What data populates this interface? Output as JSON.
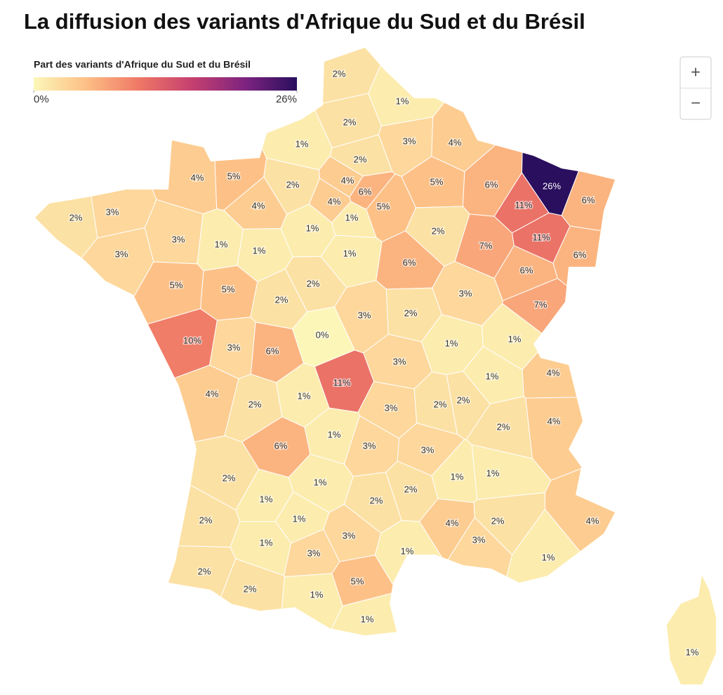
{
  "title": "La diffusion des variants d'Afrique du Sud et du Brésil",
  "legend": {
    "title": "Part des variants d'Afrique du Sud et du Brésil",
    "min": {
      "value": 0,
      "label": "0%"
    },
    "max": {
      "value": 26,
      "label": "26%"
    }
  },
  "zoom": {
    "in": "+",
    "out": "−"
  },
  "regions": [
    {
      "value": 2,
      "label": "2%"
    },
    {
      "value": 1,
      "label": "1%"
    },
    {
      "value": 2,
      "label": "2%"
    },
    {
      "value": 1,
      "label": "1%"
    },
    {
      "value": 3,
      "label": "3%"
    },
    {
      "value": 4,
      "label": "4%"
    },
    {
      "value": 2,
      "label": "2%"
    },
    {
      "value": 4,
      "label": "4%"
    },
    {
      "value": 5,
      "label": "5%"
    },
    {
      "value": 2,
      "label": "2%"
    },
    {
      "value": 4,
      "label": "4%"
    },
    {
      "value": 6,
      "label": "6%"
    },
    {
      "value": 4,
      "label": "4%"
    },
    {
      "value": 4,
      "label": "4%"
    },
    {
      "value": 1,
      "label": "1%"
    },
    {
      "value": 5,
      "label": "5%"
    },
    {
      "value": 5,
      "label": "5%"
    },
    {
      "value": 6,
      "label": "6%"
    },
    {
      "value": 26,
      "label": "26%"
    },
    {
      "value": 11,
      "label": "11%"
    },
    {
      "value": 6,
      "label": "6%"
    },
    {
      "value": 3,
      "label": "3%"
    },
    {
      "value": 2,
      "label": "2%"
    },
    {
      "value": 3,
      "label": "3%"
    },
    {
      "value": 1,
      "label": "1%"
    },
    {
      "value": 1,
      "label": "1%"
    },
    {
      "value": 1,
      "label": "1%"
    },
    {
      "value": 2,
      "label": "2%"
    },
    {
      "value": 11,
      "label": "11%"
    },
    {
      "value": 3,
      "label": "3%"
    },
    {
      "value": 1,
      "label": "1%"
    },
    {
      "value": 6,
      "label": "6%"
    },
    {
      "value": 7,
      "label": "7%"
    },
    {
      "value": 6,
      "label": "6%"
    },
    {
      "value": 5,
      "label": "5%"
    },
    {
      "value": 5,
      "label": "5%"
    },
    {
      "value": 2,
      "label": "2%"
    },
    {
      "value": 2,
      "label": "2%"
    },
    {
      "value": 6,
      "label": "6%"
    },
    {
      "value": 3,
      "label": "3%"
    },
    {
      "value": 3,
      "label": "3%"
    },
    {
      "value": 2,
      "label": "2%"
    },
    {
      "value": 7,
      "label": "7%"
    },
    {
      "value": 10,
      "label": "10%"
    },
    {
      "value": 3,
      "label": "3%"
    },
    {
      "value": 6,
      "label": "6%"
    },
    {
      "value": 0,
      "label": "0%"
    },
    {
      "value": 1,
      "label": "1%"
    },
    {
      "value": 1,
      "label": "1%"
    },
    {
      "value": 3,
      "label": "3%"
    },
    {
      "value": 11,
      "label": "11%"
    },
    {
      "value": 1,
      "label": "1%"
    },
    {
      "value": 4,
      "label": "4%"
    },
    {
      "value": 4,
      "label": "4%"
    },
    {
      "value": 2,
      "label": "2%"
    },
    {
      "value": 1,
      "label": "1%"
    },
    {
      "value": 3,
      "label": "3%"
    },
    {
      "value": 2,
      "label": "2%"
    },
    {
      "value": 2,
      "label": "2%"
    },
    {
      "value": 4,
      "label": "4%"
    },
    {
      "value": 2,
      "label": "2%"
    },
    {
      "value": 6,
      "label": "6%"
    },
    {
      "value": 1,
      "label": "1%"
    },
    {
      "value": 3,
      "label": "3%"
    },
    {
      "value": 3,
      "label": "3%"
    },
    {
      "value": 2,
      "label": "2%"
    },
    {
      "value": 1,
      "label": "1%"
    },
    {
      "value": 1,
      "label": "1%"
    },
    {
      "value": 1,
      "label": "1%"
    },
    {
      "value": 2,
      "label": "2%"
    },
    {
      "value": 1,
      "label": "1%"
    },
    {
      "value": 2,
      "label": "2%"
    },
    {
      "value": 2,
      "label": "2%"
    },
    {
      "value": 1,
      "label": "1%"
    },
    {
      "value": 4,
      "label": "4%"
    },
    {
      "value": 2,
      "label": "2%"
    },
    {
      "value": 4,
      "label": "4%"
    },
    {
      "value": 1,
      "label": "1%"
    },
    {
      "value": 3,
      "label": "3%"
    },
    {
      "value": 3,
      "label": "3%"
    },
    {
      "value": 1,
      "label": "1%"
    },
    {
      "value": 3,
      "label": "3%"
    },
    {
      "value": 1,
      "label": "1%"
    },
    {
      "value": 2,
      "label": "2%"
    },
    {
      "value": 5,
      "label": "5%"
    },
    {
      "value": 2,
      "label": "2%"
    },
    {
      "value": 1,
      "label": "1%"
    },
    {
      "value": 1,
      "label": "1%"
    },
    {
      "value": 1,
      "label": "1%"
    }
  ]
}
